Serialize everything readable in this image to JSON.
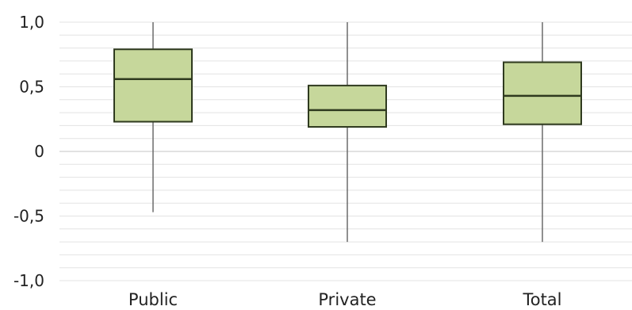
{
  "chart_data": {
    "type": "boxplot",
    "title": "",
    "xlabel": "",
    "ylabel": "",
    "ylim": [
      -1.0,
      1.0
    ],
    "yticks": [
      {
        "value": 1.0,
        "label": "1,0"
      },
      {
        "value": 0.5,
        "label": "0,5"
      },
      {
        "value": 0.0,
        "label": "0"
      },
      {
        "value": -0.5,
        "label": "-0,5"
      },
      {
        "value": -1.0,
        "label": "-1,0"
      }
    ],
    "minor_grid_step": 0.1,
    "grid": true,
    "legend": "none",
    "categories": [
      "Public",
      "Private",
      "Total"
    ],
    "boxes": [
      {
        "category": "Public",
        "min": -0.47,
        "q1": 0.23,
        "median": 0.56,
        "q3": 0.79,
        "max": 1.0
      },
      {
        "category": "Private",
        "min": -0.7,
        "q1": 0.19,
        "median": 0.32,
        "q3": 0.51,
        "max": 1.0
      },
      {
        "category": "Total",
        "min": -0.7,
        "q1": 0.21,
        "median": 0.43,
        "q3": 0.69,
        "max": 1.0
      }
    ],
    "colors": {
      "box_fill": "#c6d79b",
      "box_stroke": "#2f3a1f",
      "whisker": "#6b6b6b",
      "grid": "#e3e3e3",
      "zero_line": "#d0d0d0"
    }
  }
}
